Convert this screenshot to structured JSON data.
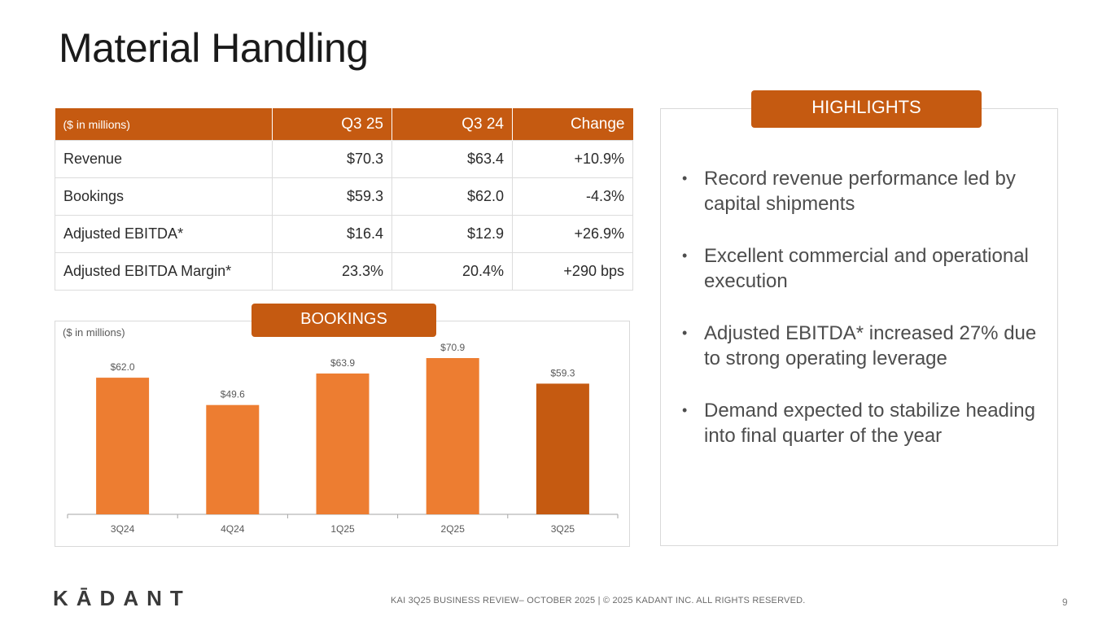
{
  "title": "Material Handling",
  "table": {
    "headers": [
      "($ in millions)",
      "Q3 25",
      "Q3 24",
      "Change"
    ],
    "rows": [
      [
        "Revenue",
        "$70.3",
        "$63.4",
        "+10.9%"
      ],
      [
        "Bookings",
        "$59.3",
        "$62.0",
        "-4.3%"
      ],
      [
        "Adjusted EBITDA*",
        "$16.4",
        "$12.9",
        "+26.9%"
      ],
      [
        "Adjusted EBITDA Margin*",
        "23.3%",
        "20.4%",
        "+290 bps"
      ]
    ]
  },
  "bookings_label": "BOOKINGS",
  "chart_units": "($ in millions)",
  "chart_data": {
    "type": "bar",
    "title": "BOOKINGS",
    "categories": [
      "3Q24",
      "4Q24",
      "1Q25",
      "2Q25",
      "3Q25"
    ],
    "values": [
      62.0,
      49.6,
      63.9,
      70.9,
      59.3
    ],
    "labels": [
      "$62.0",
      "$49.6",
      "$63.9",
      "$70.9",
      "$59.3"
    ],
    "ylabel": "($ in millions)",
    "ylim": [
      0,
      70.9
    ],
    "colors": [
      "#ed7d31",
      "#ed7d31",
      "#ed7d31",
      "#ed7d31",
      "#c55a11"
    ]
  },
  "highlights": {
    "label": "HIGHLIGHTS",
    "bullet": "•",
    "items": [
      "Record revenue performance led by capital shipments",
      "Excellent commercial and operational execution",
      "Adjusted EBITDA* increased 27% due to strong operating leverage",
      "Demand expected to stabilize heading into final quarter of the year"
    ]
  },
  "footer": {
    "logo": "KĀDANT",
    "text": "KAI 3Q25 BUSINESS REVIEW– OCTOBER 2025 | © 2025 KADANT INC. ALL RIGHTS RESERVED.",
    "page": "9"
  }
}
